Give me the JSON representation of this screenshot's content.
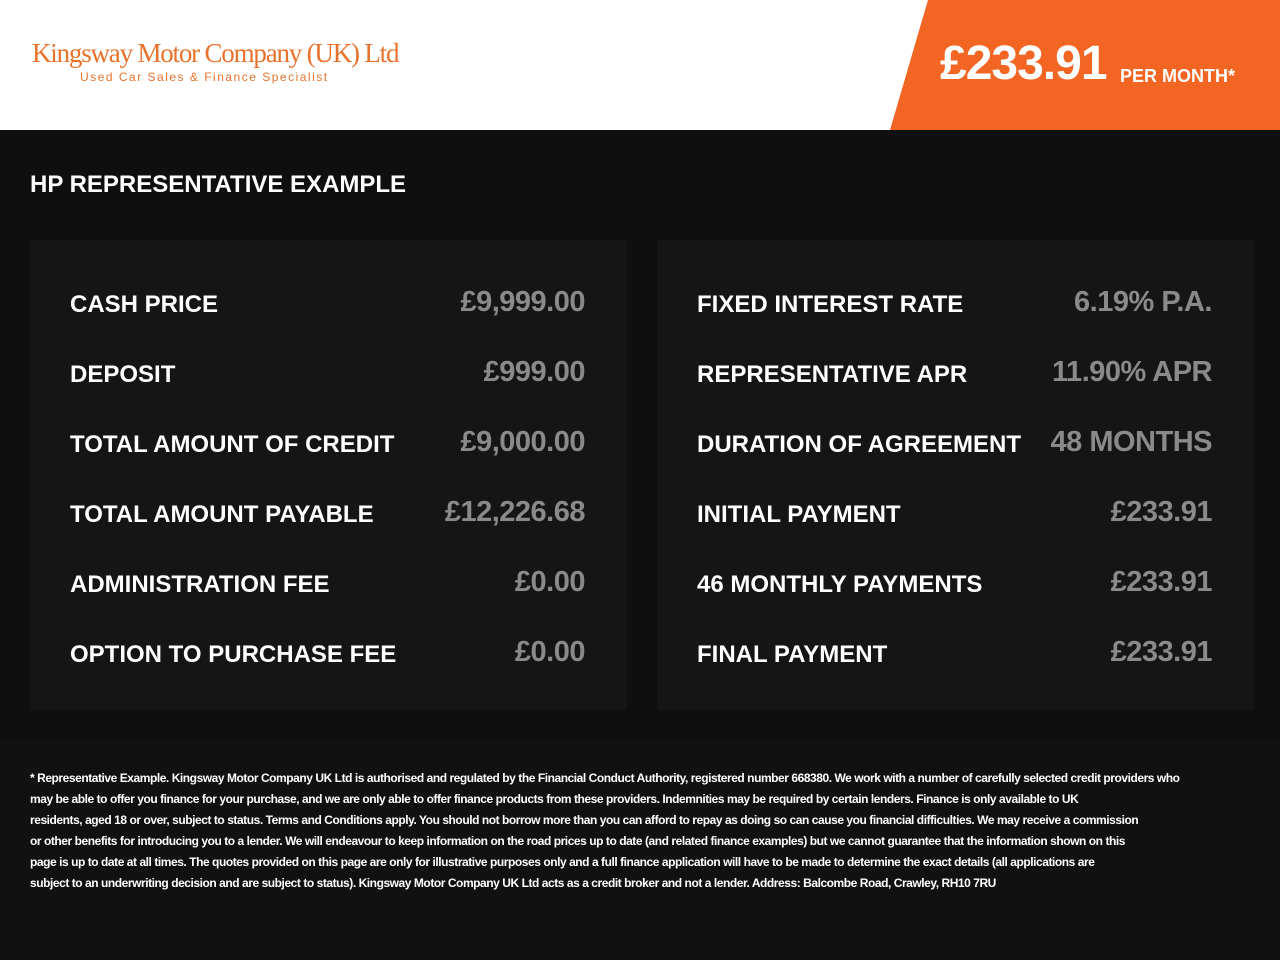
{
  "header": {
    "logo": {
      "name": "Kingsway Motor Company (UK) Ltd",
      "tagline": "Used Car Sales & Finance Specialist"
    },
    "price": "£233.91",
    "price_suffix": "PER MONTH*"
  },
  "section_title": "HP REPRESENTATIVE EXAMPLE",
  "panels": [
    {
      "rows": [
        {
          "label": "CASH PRICE",
          "value": "£9,999.00"
        },
        {
          "label": "DEPOSIT",
          "value": "£999.00"
        },
        {
          "label": "TOTAL AMOUNT OF CREDIT",
          "value": "£9,000.00"
        },
        {
          "label": "TOTAL AMOUNT PAYABLE",
          "value": "£12,226.68"
        },
        {
          "label": "ADMINISTRATION FEE",
          "value": "£0.00"
        },
        {
          "label": "OPTION TO PURCHASE FEE",
          "value": "£0.00"
        }
      ]
    },
    {
      "rows": [
        {
          "label": "FIXED INTEREST RATE",
          "value": "6.19% P.A."
        },
        {
          "label": "REPRESENTATIVE APR",
          "value": "11.90% APR"
        },
        {
          "label": "DURATION OF AGREEMENT",
          "value": "48 MONTHS"
        },
        {
          "label": "INITIAL PAYMENT",
          "value": "£233.91"
        },
        {
          "label": "46 MONTHLY PAYMENTS",
          "value": "£233.91"
        },
        {
          "label": "FINAL PAYMENT",
          "value": "£233.91"
        }
      ]
    }
  ],
  "footer": {
    "lines": [
      "* Representative Example. Kingsway Motor Company UK Ltd is authorised and regulated by the Financial Conduct Authority, registered number 668380. We work with a number of carefully selected credit providers who",
      "may be able to offer you finance for your purchase, and we are only able to offer finance products from these providers. Indemnities may be required by certain lenders. Finance is only available to UK",
      "residents, aged 18 or over, subject to status. Terms and Conditions apply. You should not borrow more than you can afford to repay as doing so can cause you financial difficulties. We may receive a commission",
      "or other benefits for introducing you to a lender. We will endeavour to keep information on the road prices up to date (and related finance examples) but we cannot guarantee that the information shown on this",
      "page is up to date at all times. The quotes provided on this page are only for illustrative purposes only and a full finance application will have to be made to determine the exact details (all applications are",
      "subject to an underwriting decision and are subject to status). Kingsway Motor Company UK Ltd acts as a credit broker and not a lender. Address: Balcombe Road, Crawley, RH10 7RU"
    ]
  }
}
